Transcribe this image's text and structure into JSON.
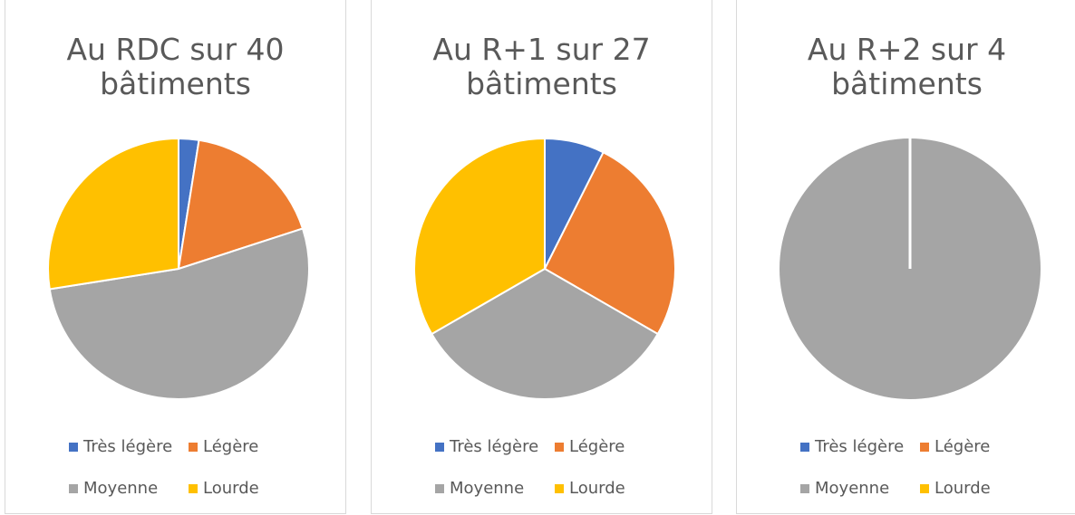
{
  "chart_data": [
    {
      "type": "pie",
      "title": "Au RDC sur 40 bâtiments",
      "categories": [
        "Très légère",
        "Légère",
        "Moyenne",
        "Lourde"
      ],
      "values": [
        1,
        7,
        21,
        11
      ],
      "colors": [
        "#4472c4",
        "#ed7d31",
        "#a5a5a5",
        "#ffc000"
      ]
    },
    {
      "type": "pie",
      "title": "Au R+1 sur 27 bâtiments",
      "categories": [
        "Très légère",
        "Légère",
        "Moyenne",
        "Lourde"
      ],
      "values": [
        2,
        7,
        9,
        9
      ],
      "colors": [
        "#4472c4",
        "#ed7d31",
        "#a5a5a5",
        "#ffc000"
      ]
    },
    {
      "type": "pie",
      "title": "Au R+2 sur 4 bâtiments",
      "categories": [
        "Très légère",
        "Légère",
        "Moyenne",
        "Lourde"
      ],
      "values": [
        0,
        0,
        4,
        0
      ],
      "colors": [
        "#4472c4",
        "#ed7d31",
        "#a5a5a5",
        "#ffc000"
      ]
    }
  ]
}
